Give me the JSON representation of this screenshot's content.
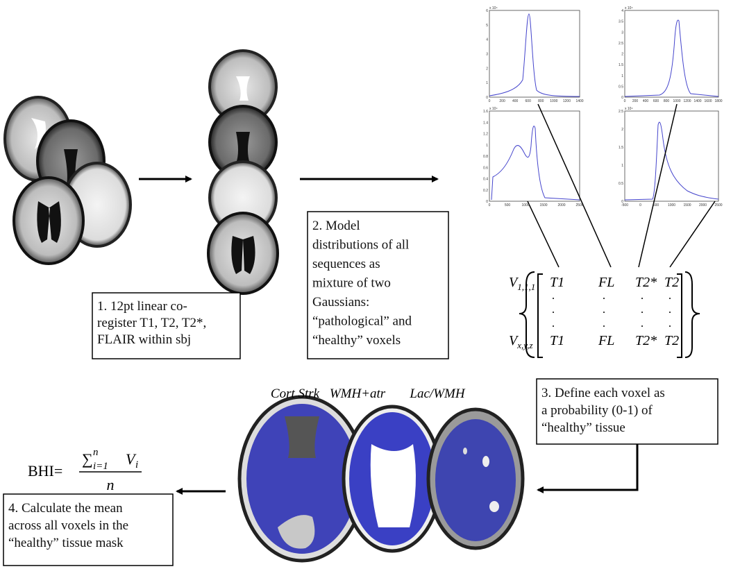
{
  "steps": [
    {
      "lines": [
        "1. 12pt linear co-",
        "register T1, T2, T2*,",
        "FLAIR within sbj"
      ]
    },
    {
      "lines": [
        "2. Model",
        "distributions of all",
        "sequences as",
        "mixture of two",
        "Gaussians:",
        "“pathological” and",
        "“healthy” voxels"
      ]
    },
    {
      "lines": [
        "3. Define each voxel as",
        "a probability (0-1) of",
        "“healthy” tissue"
      ]
    },
    {
      "lines": [
        "4. Calculate the mean",
        "across all voxels in the",
        "“healthy” tissue mask"
      ]
    }
  ],
  "mask_labels": [
    "Cort Strk",
    "WMH+atr",
    "Lac/WMH"
  ],
  "histograms": [
    {
      "scale": "x 10⁴",
      "xticks": [
        "0",
        "200",
        "400",
        "600",
        "800",
        "1000",
        "1200",
        "1400"
      ],
      "yticks": [
        "0",
        "1",
        "2",
        "3",
        "4",
        "5",
        "6"
      ]
    },
    {
      "scale": "x 10⁴",
      "xticks": [
        "0",
        "200",
        "400",
        "600",
        "800",
        "1000",
        "1200",
        "1400",
        "1600",
        "1800"
      ],
      "yticks": [
        "0",
        "0.5",
        "1",
        "1.5",
        "2",
        "2.5",
        "3",
        "3.5",
        "4"
      ]
    },
    {
      "scale": "x 10⁴",
      "xticks": [
        "0",
        "500",
        "1000",
        "1500",
        "2000",
        "2500"
      ],
      "yticks": [
        "0",
        "0.2",
        "0.4",
        "0.6",
        "0.8",
        "1",
        "1.2",
        "1.4",
        "1.6"
      ]
    },
    {
      "scale": "x 10⁴",
      "xticks": [
        "-500",
        "0",
        "500",
        "1000",
        "1500",
        "2000",
        "2500"
      ],
      "yticks": [
        "0",
        "0.5",
        "1",
        "1.5",
        "2",
        "2.5"
      ]
    }
  ],
  "matrix": {
    "rows": [
      {
        "symbol": "V",
        "subscript": "1,1,1",
        "cells": [
          "T1",
          "FL",
          "T2*",
          "T2"
        ]
      },
      {
        "symbol": "V",
        "subscript": "x,y,z",
        "cells": [
          "T1",
          "FL",
          "T2*",
          "T2"
        ]
      }
    ]
  },
  "formula": {
    "lhs": "BHI=",
    "sum": "∑",
    "lower": "i=1",
    "upper": "n",
    "var": "V",
    "sub": "i",
    "denominator": "n"
  }
}
